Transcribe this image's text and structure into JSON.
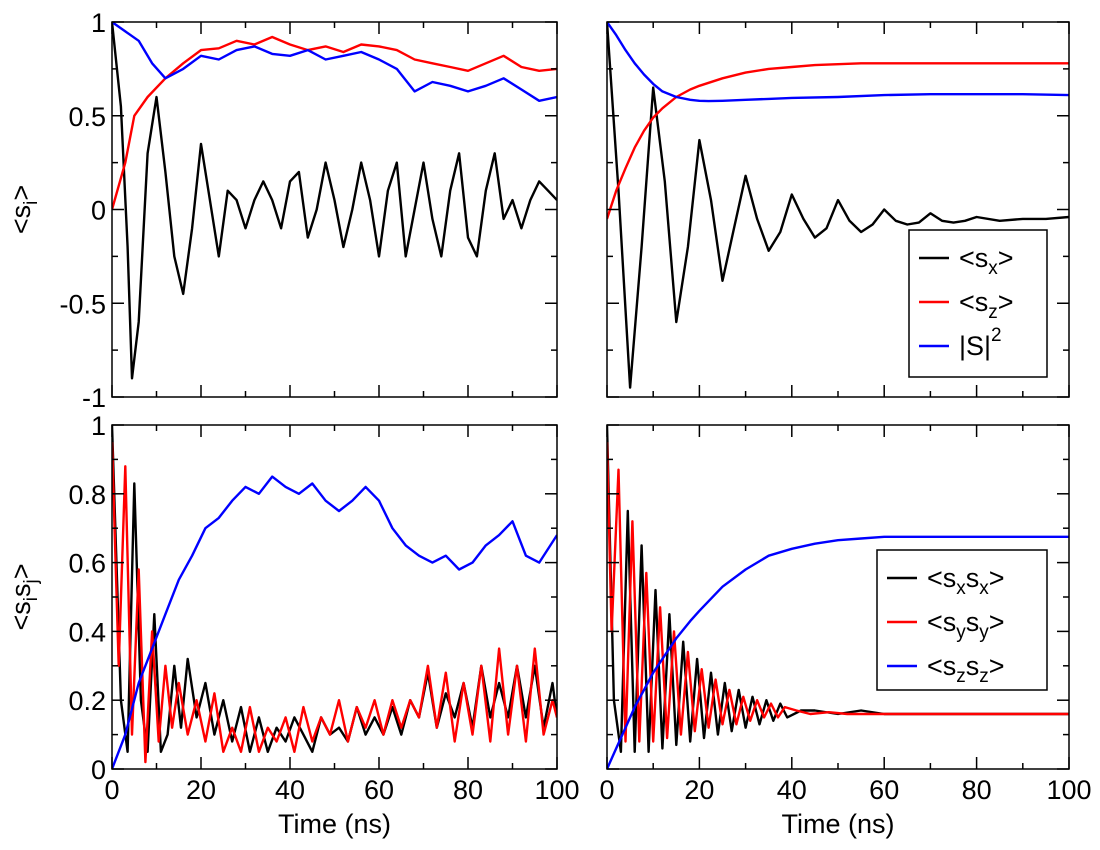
{
  "chart_data": [
    {
      "id": "top-left",
      "type": "line",
      "title": "",
      "xlabel": "",
      "ylabel": {
        "main": "<s",
        "sub": "i",
        "close": ">"
      },
      "xlim": [
        0,
        100
      ],
      "ylim": [
        -1,
        1
      ],
      "xticks": [
        0,
        20,
        40,
        60,
        80,
        100
      ],
      "yticks": [
        -1,
        -0.5,
        0,
        0.5,
        1
      ],
      "yticklabels": [
        "-1",
        "-0.5",
        "0",
        "0.5",
        "1"
      ],
      "show_xtick_labels": false,
      "show_ytick_labels": true,
      "grid": false,
      "legend": null,
      "series": [
        {
          "name": "<sx>",
          "color": "#000000",
          "x": [
            0,
            2,
            3.5,
            4.5,
            6,
            8,
            10,
            12,
            14,
            16,
            18,
            20,
            22,
            24,
            26,
            28,
            30,
            32,
            34,
            36,
            38,
            40,
            42,
            44,
            46,
            48,
            50,
            52,
            54,
            56,
            58,
            60,
            62,
            64,
            66,
            68,
            70,
            72,
            74,
            76,
            78,
            80,
            82,
            84,
            86,
            88,
            90,
            92,
            94,
            96,
            98,
            100
          ],
          "y": [
            1,
            0.55,
            -0.2,
            -0.9,
            -0.6,
            0.3,
            0.6,
            0.2,
            -0.25,
            -0.45,
            -0.1,
            0.35,
            0.05,
            -0.25,
            0.1,
            0.05,
            -0.1,
            0.05,
            0.15,
            0.05,
            -0.1,
            0.15,
            0.2,
            -0.15,
            0.0,
            0.25,
            0.05,
            -0.2,
            0.0,
            0.25,
            0.05,
            -0.25,
            0.1,
            0.25,
            -0.25,
            0.0,
            0.25,
            -0.05,
            -0.25,
            0.1,
            0.3,
            -0.15,
            -0.25,
            0.1,
            0.3,
            -0.05,
            0.05,
            -0.1,
            0.05,
            0.15,
            0.1,
            0.05
          ]
        },
        {
          "name": "<sz>",
          "color": "#ff0000",
          "x": [
            0,
            3,
            5,
            8,
            12,
            16,
            20,
            24,
            28,
            32,
            36,
            40,
            44,
            48,
            52,
            56,
            60,
            64,
            68,
            72,
            76,
            80,
            84,
            88,
            92,
            96,
            100
          ],
          "y": [
            0,
            0.25,
            0.5,
            0.6,
            0.7,
            0.78,
            0.85,
            0.86,
            0.9,
            0.88,
            0.92,
            0.88,
            0.85,
            0.87,
            0.84,
            0.88,
            0.87,
            0.85,
            0.8,
            0.78,
            0.76,
            0.74,
            0.78,
            0.82,
            0.76,
            0.74,
            0.75
          ]
        },
        {
          "name": "|S|^2",
          "color": "#0000ff",
          "x": [
            0,
            3,
            6,
            9,
            12,
            16,
            20,
            24,
            28,
            32,
            36,
            40,
            44,
            48,
            52,
            56,
            60,
            64,
            68,
            72,
            76,
            80,
            84,
            88,
            92,
            96,
            100
          ],
          "y": [
            1,
            0.95,
            0.9,
            0.78,
            0.7,
            0.75,
            0.82,
            0.8,
            0.85,
            0.87,
            0.83,
            0.82,
            0.85,
            0.8,
            0.82,
            0.84,
            0.8,
            0.75,
            0.63,
            0.68,
            0.66,
            0.63,
            0.66,
            0.7,
            0.64,
            0.58,
            0.6
          ]
        }
      ]
    },
    {
      "id": "top-right",
      "type": "line",
      "title": "",
      "xlabel": "",
      "ylabel": null,
      "xlim": [
        0,
        100
      ],
      "ylim": [
        -1,
        1
      ],
      "xticks": [
        0,
        20,
        40,
        60,
        80,
        100
      ],
      "yticks": [
        -1,
        -0.5,
        0,
        0.5,
        1
      ],
      "show_xtick_labels": false,
      "show_ytick_labels": false,
      "grid": false,
      "legend": {
        "position": "bottom-right",
        "entries": [
          {
            "main": "<s",
            "sub": "x",
            "close": ">",
            "color": "#000000"
          },
          {
            "main": "<s",
            "sub": "z",
            "close": ">",
            "color": "#ff0000"
          },
          {
            "main": "|S|",
            "sup": "2",
            "color": "#0000ff"
          }
        ]
      },
      "series": [
        {
          "name": "<sx>",
          "color": "#000000",
          "x": [
            0,
            2.5,
            5,
            7.5,
            10,
            12.5,
            15,
            17.5,
            20,
            22.5,
            25,
            27.5,
            30,
            32.5,
            35,
            37.5,
            40,
            42.5,
            45,
            47.5,
            50,
            52.5,
            55,
            57.5,
            60,
            62.5,
            65,
            67.5,
            70,
            72.5,
            75,
            77.5,
            80,
            85,
            90,
            95,
            100
          ],
          "y": [
            1,
            0.1,
            -0.95,
            -0.2,
            0.65,
            0.15,
            -0.6,
            -0.2,
            0.37,
            0.05,
            -0.38,
            -0.1,
            0.18,
            -0.05,
            -0.22,
            -0.12,
            0.08,
            -0.05,
            -0.15,
            -0.1,
            0.05,
            -0.06,
            -0.12,
            -0.08,
            0.0,
            -0.06,
            -0.08,
            -0.07,
            -0.02,
            -0.06,
            -0.07,
            -0.06,
            -0.04,
            -0.06,
            -0.05,
            -0.05,
            -0.04
          ]
        },
        {
          "name": "<sz>",
          "color": "#ff0000",
          "x": [
            0,
            2,
            4,
            6,
            8,
            10,
            12,
            15,
            18,
            20,
            25,
            30,
            35,
            40,
            45,
            50,
            55,
            60,
            70,
            80,
            90,
            100
          ],
          "y": [
            -0.05,
            0.1,
            0.22,
            0.33,
            0.42,
            0.49,
            0.54,
            0.6,
            0.64,
            0.66,
            0.7,
            0.73,
            0.75,
            0.76,
            0.77,
            0.775,
            0.78,
            0.78,
            0.78,
            0.78,
            0.78,
            0.78
          ]
        },
        {
          "name": "|S|^2",
          "color": "#0000ff",
          "x": [
            0,
            2,
            4,
            6,
            8,
            10,
            12,
            15,
            18,
            20,
            22,
            25,
            30,
            35,
            40,
            50,
            60,
            70,
            80,
            90,
            100
          ],
          "y": [
            1,
            0.93,
            0.85,
            0.78,
            0.72,
            0.67,
            0.63,
            0.6,
            0.585,
            0.58,
            0.578,
            0.58,
            0.585,
            0.59,
            0.595,
            0.6,
            0.61,
            0.615,
            0.615,
            0.615,
            0.61
          ]
        }
      ]
    },
    {
      "id": "bottom-left",
      "type": "line",
      "title": "",
      "xlabel": "Time (ns)",
      "ylabel": {
        "main": "<s",
        "sub": "i",
        "mid": "s",
        "sub2": "j",
        "close": ">"
      },
      "xlim": [
        0,
        100
      ],
      "ylim": [
        0,
        1
      ],
      "xticks": [
        0,
        20,
        40,
        60,
        80,
        100
      ],
      "xticklabels": [
        "0",
        "20",
        "40",
        "60",
        "80",
        "100"
      ],
      "yticks": [
        0,
        0.2,
        0.4,
        0.6,
        0.8,
        1
      ],
      "yticklabels": [
        "0",
        "0.2",
        "0.4",
        "0.6",
        "0.8",
        "1"
      ],
      "show_xtick_labels": true,
      "show_ytick_labels": true,
      "grid": false,
      "legend": null,
      "series": [
        {
          "name": "<sxsx>",
          "color": "#000000",
          "x": [
            0,
            2,
            3.5,
            5,
            6.5,
            8,
            9.5,
            11,
            12.5,
            14,
            15.5,
            17,
            19,
            21,
            23,
            25,
            27,
            29,
            31,
            33,
            35,
            37,
            39,
            41,
            43,
            45,
            47,
            49,
            51,
            53,
            55,
            57,
            59,
            61,
            63,
            65,
            67,
            69,
            71,
            73,
            75,
            77,
            79,
            81,
            83,
            85,
            87,
            89,
            91,
            93,
            95,
            97,
            99,
            100
          ],
          "y": [
            1,
            0.2,
            0.05,
            0.83,
            0.2,
            0.05,
            0.45,
            0.05,
            0.1,
            0.3,
            0.12,
            0.32,
            0.15,
            0.25,
            0.1,
            0.2,
            0.08,
            0.18,
            0.05,
            0.15,
            0.05,
            0.12,
            0.08,
            0.15,
            0.1,
            0.05,
            0.15,
            0.1,
            0.12,
            0.08,
            0.18,
            0.1,
            0.15,
            0.1,
            0.18,
            0.1,
            0.2,
            0.15,
            0.28,
            0.12,
            0.22,
            0.15,
            0.25,
            0.12,
            0.3,
            0.15,
            0.25,
            0.15,
            0.3,
            0.15,
            0.3,
            0.12,
            0.25,
            0.15
          ]
        },
        {
          "name": "<sysy>",
          "color": "#ff0000",
          "x": [
            0,
            1.5,
            3,
            4.5,
            6,
            7.5,
            9,
            10.5,
            12,
            13.5,
            15,
            17,
            19,
            21,
            23,
            25,
            27,
            29,
            31,
            33,
            35,
            37,
            39,
            41,
            43,
            45,
            47,
            49,
            51,
            53,
            55,
            57,
            59,
            61,
            63,
            65,
            67,
            69,
            71,
            73,
            75,
            77,
            79,
            81,
            83,
            85,
            87,
            89,
            91,
            93,
            95,
            97,
            99,
            100
          ],
          "y": [
            0.95,
            0.3,
            0.88,
            0.1,
            0.58,
            0.02,
            0.4,
            0.08,
            0.3,
            0.12,
            0.25,
            0.1,
            0.2,
            0.08,
            0.22,
            0.05,
            0.12,
            0.05,
            0.18,
            0.05,
            0.12,
            0.08,
            0.15,
            0.05,
            0.18,
            0.08,
            0.15,
            0.1,
            0.2,
            0.08,
            0.18,
            0.12,
            0.2,
            0.1,
            0.2,
            0.12,
            0.2,
            0.15,
            0.3,
            0.12,
            0.28,
            0.08,
            0.25,
            0.1,
            0.3,
            0.08,
            0.35,
            0.1,
            0.3,
            0.08,
            0.35,
            0.1,
            0.2,
            0.15
          ]
        },
        {
          "name": "<szsz>",
          "color": "#0000ff",
          "x": [
            0,
            3,
            6,
            9,
            12,
            15,
            18,
            21,
            24,
            27,
            30,
            33,
            36,
            39,
            42,
            45,
            48,
            51,
            54,
            57,
            60,
            63,
            66,
            69,
            72,
            75,
            78,
            81,
            84,
            87,
            90,
            93,
            96,
            100
          ],
          "y": [
            0,
            0.1,
            0.25,
            0.35,
            0.45,
            0.55,
            0.62,
            0.7,
            0.73,
            0.78,
            0.82,
            0.8,
            0.85,
            0.82,
            0.8,
            0.83,
            0.78,
            0.75,
            0.78,
            0.82,
            0.78,
            0.7,
            0.65,
            0.62,
            0.6,
            0.62,
            0.58,
            0.6,
            0.65,
            0.68,
            0.72,
            0.62,
            0.6,
            0.68
          ]
        }
      ]
    },
    {
      "id": "bottom-right",
      "type": "line",
      "title": "",
      "xlabel": "Time (ns)",
      "ylabel": null,
      "xlim": [
        0,
        100
      ],
      "ylim": [
        0,
        1
      ],
      "xticks": [
        0,
        20,
        40,
        60,
        80,
        100
      ],
      "xticklabels": [
        "0",
        "20",
        "40",
        "60",
        "80",
        "100"
      ],
      "yticks": [
        0,
        0.2,
        0.4,
        0.6,
        0.8,
        1
      ],
      "show_xtick_labels": true,
      "show_ytick_labels": false,
      "grid": false,
      "legend": {
        "position": "right",
        "entries": [
          {
            "main": "<s",
            "sub": "x",
            "mid": "s",
            "sub2": "x",
            "close": ">",
            "color": "#000000"
          },
          {
            "main": "<s",
            "sub": "y",
            "mid": "s",
            "sub2": "y",
            "close": ">",
            "color": "#ff0000"
          },
          {
            "main": "<s",
            "sub": "z",
            "mid": "s",
            "sub2": "z",
            "close": ">",
            "color": "#0000ff"
          }
        ]
      },
      "series": [
        {
          "name": "<sxsx>",
          "color": "#000000",
          "x": [
            0,
            1.5,
            3,
            4.5,
            6,
            7.5,
            9,
            10.5,
            12,
            13.5,
            15,
            16.5,
            18,
            19.5,
            21,
            22.5,
            24,
            25.5,
            27,
            28.5,
            30,
            31.5,
            33,
            34.5,
            36,
            37.5,
            39,
            42,
            45,
            50,
            55,
            60,
            70,
            80,
            90,
            100
          ],
          "y": [
            1,
            0.2,
            0.05,
            0.75,
            0.05,
            0.65,
            0.05,
            0.52,
            0.06,
            0.45,
            0.07,
            0.37,
            0.08,
            0.32,
            0.09,
            0.28,
            0.1,
            0.25,
            0.11,
            0.23,
            0.12,
            0.21,
            0.13,
            0.2,
            0.14,
            0.19,
            0.15,
            0.17,
            0.17,
            0.16,
            0.17,
            0.16,
            0.16,
            0.16,
            0.16,
            0.16
          ]
        },
        {
          "name": "<sysy>",
          "color": "#ff0000",
          "x": [
            0,
            1,
            2.5,
            4,
            5.5,
            7,
            8.5,
            10,
            11.5,
            13,
            14.5,
            16,
            17.5,
            19,
            20.5,
            22,
            23.5,
            25,
            26.5,
            28,
            29.5,
            31,
            32.5,
            34,
            35.5,
            37,
            38.5,
            41,
            44,
            48,
            52,
            56,
            60,
            70,
            80,
            90,
            100
          ],
          "y": [
            0.95,
            0.4,
            0.87,
            0.08,
            0.72,
            0.08,
            0.57,
            0.08,
            0.47,
            0.09,
            0.4,
            0.1,
            0.34,
            0.11,
            0.29,
            0.12,
            0.26,
            0.13,
            0.23,
            0.13,
            0.21,
            0.14,
            0.2,
            0.15,
            0.19,
            0.15,
            0.18,
            0.17,
            0.16,
            0.165,
            0.16,
            0.16,
            0.16,
            0.16,
            0.16,
            0.16,
            0.16
          ]
        },
        {
          "name": "<szsz>",
          "color": "#0000ff",
          "x": [
            0,
            2,
            4,
            6,
            8,
            10,
            12,
            15,
            18,
            20,
            25,
            30,
            35,
            40,
            45,
            50,
            55,
            60,
            70,
            80,
            90,
            100
          ],
          "y": [
            0,
            0.06,
            0.12,
            0.18,
            0.23,
            0.28,
            0.32,
            0.38,
            0.43,
            0.46,
            0.53,
            0.58,
            0.62,
            0.64,
            0.655,
            0.665,
            0.67,
            0.675,
            0.675,
            0.675,
            0.675,
            0.675
          ]
        }
      ]
    }
  ]
}
